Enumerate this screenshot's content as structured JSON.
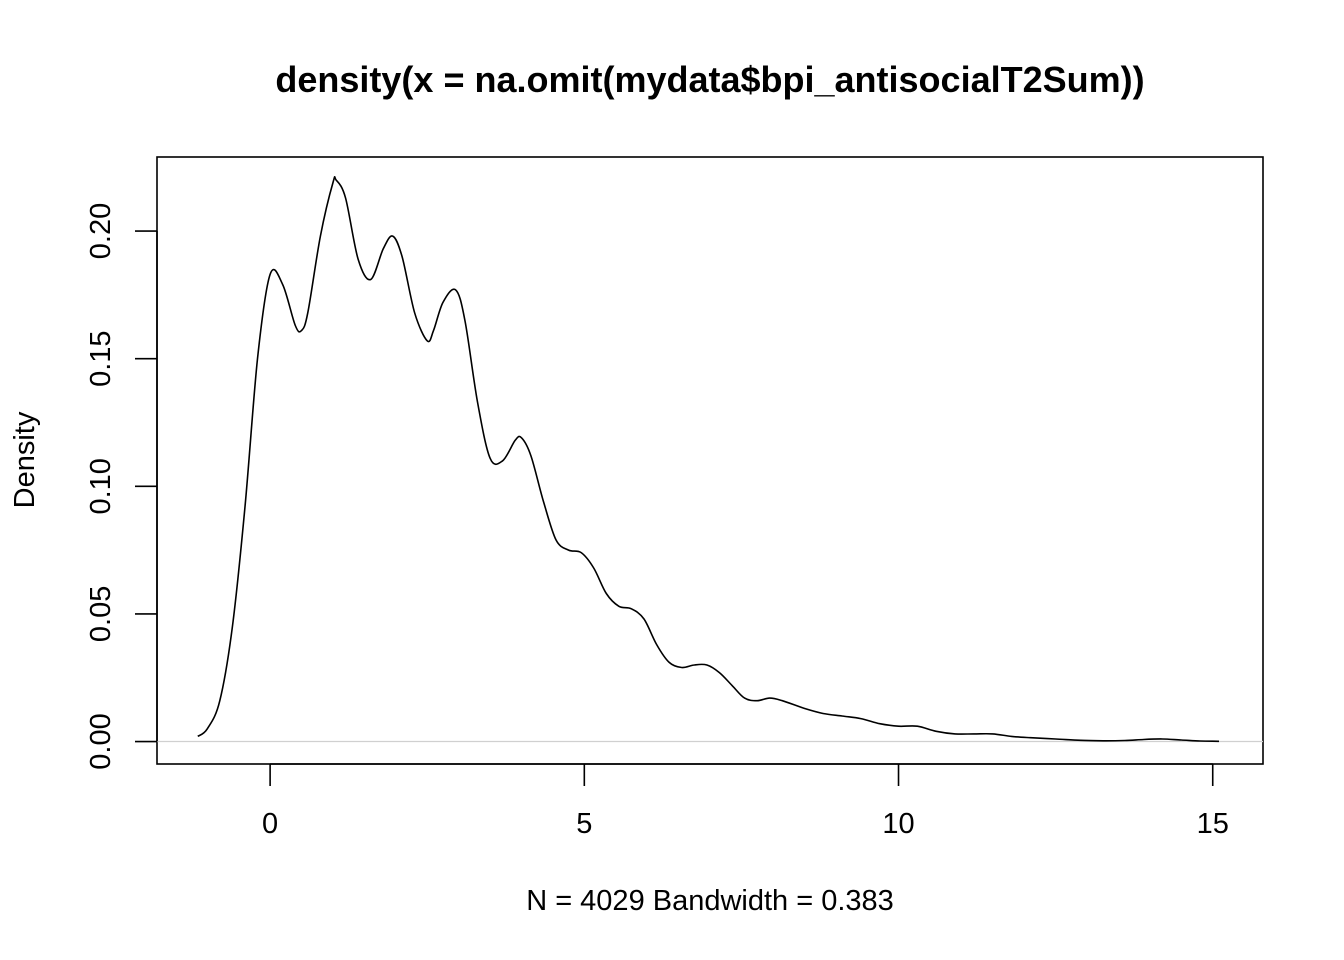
{
  "chart_data": {
    "type": "line",
    "title": "density(x = na.omit(mydata$bpi_antisocialT2Sum))",
    "xlabel": "N = 4029   Bandwidth = 0.383",
    "ylabel": "Density",
    "xlim": [
      -1.8,
      15.8
    ],
    "ylim": [
      -0.0088,
      0.229
    ],
    "x_ticks": [
      0,
      5,
      10,
      15
    ],
    "x_tick_labels": [
      "0",
      "5",
      "10",
      "15"
    ],
    "y_ticks": [
      0.0,
      0.05,
      0.1,
      0.15,
      0.2
    ],
    "y_tick_labels": [
      "0.00",
      "0.05",
      "0.10",
      "0.15",
      "0.20"
    ],
    "grid": false,
    "series": [
      {
        "x": [
          -1.15,
          -1.0,
          -0.8,
          -0.6,
          -0.4,
          -0.2,
          0.0,
          0.2,
          0.4,
          0.5,
          0.6,
          0.8,
          1.0,
          1.05,
          1.2,
          1.4,
          1.6,
          1.8,
          1.95,
          2.1,
          2.3,
          2.5,
          2.6,
          2.75,
          2.95,
          3.1,
          3.3,
          3.5,
          3.7,
          3.9,
          4.0,
          4.15,
          4.35,
          4.55,
          4.75,
          4.95,
          5.15,
          5.35,
          5.55,
          5.75,
          5.95,
          6.15,
          6.35,
          6.55,
          6.75,
          6.95,
          7.15,
          7.35,
          7.55,
          7.75,
          7.95,
          8.15,
          8.5,
          8.8,
          9.1,
          9.4,
          9.7,
          10.0,
          10.3,
          10.6,
          10.9,
          11.2,
          11.5,
          11.8,
          12.1,
          12.5,
          12.9,
          13.3,
          13.6,
          13.9,
          14.2,
          14.5,
          14.8,
          15.1
        ],
        "y": [
          0.002,
          0.005,
          0.016,
          0.045,
          0.092,
          0.15,
          0.183,
          0.179,
          0.163,
          0.161,
          0.168,
          0.198,
          0.219,
          0.22,
          0.213,
          0.189,
          0.181,
          0.193,
          0.198,
          0.19,
          0.168,
          0.157,
          0.161,
          0.172,
          0.177,
          0.165,
          0.133,
          0.111,
          0.11,
          0.118,
          0.119,
          0.112,
          0.094,
          0.079,
          0.075,
          0.074,
          0.068,
          0.058,
          0.053,
          0.052,
          0.048,
          0.038,
          0.031,
          0.029,
          0.03,
          0.03,
          0.027,
          0.022,
          0.017,
          0.016,
          0.017,
          0.016,
          0.013,
          0.011,
          0.01,
          0.009,
          0.007,
          0.006,
          0.006,
          0.004,
          0.003,
          0.003,
          0.003,
          0.002,
          0.0015,
          0.001,
          0.0005,
          0.0003,
          0.0004,
          0.0008,
          0.001,
          0.0006,
          0.0002,
          0.0001
        ]
      }
    ]
  }
}
